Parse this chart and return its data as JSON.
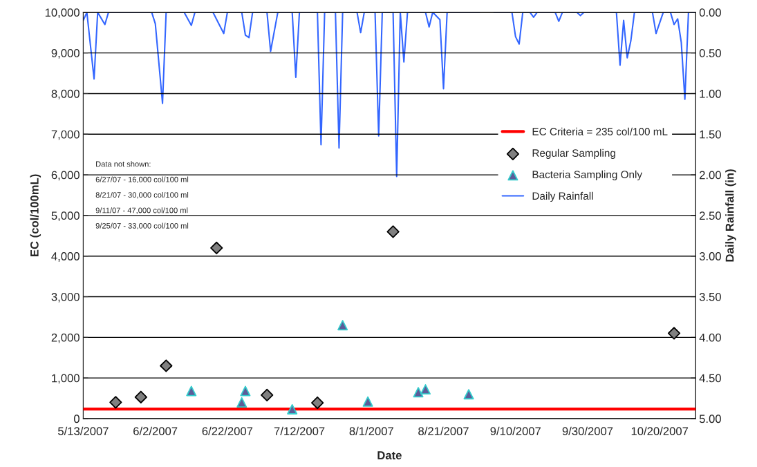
{
  "chart_data": {
    "type": "scatter",
    "xlabel": "Date",
    "ylabel": "EC (col/100mL)",
    "y2label": "Daily Rainfall (in)",
    "xlim": [
      "2007-05-13",
      "2007-10-30"
    ],
    "xticks": [
      {
        "value": "2007-05-13",
        "label": "5/13/2007"
      },
      {
        "value": "2007-06-02",
        "label": "6/2/2007"
      },
      {
        "value": "2007-06-22",
        "label": "6/22/2007"
      },
      {
        "value": "2007-07-12",
        "label": "7/12/2007"
      },
      {
        "value": "2007-08-01",
        "label": "8/1/2007"
      },
      {
        "value": "2007-08-21",
        "label": "8/21/2007"
      },
      {
        "value": "2007-09-10",
        "label": "9/10/2007"
      },
      {
        "value": "2007-09-30",
        "label": "9/30/2007"
      },
      {
        "value": "2007-10-20",
        "label": "10/20/2007"
      }
    ],
    "ylim": [
      0,
      10000
    ],
    "yticks": [
      0,
      {
        "value": 1000,
        "label": "1,000"
      },
      {
        "value": 2000,
        "label": "2,000"
      },
      {
        "value": 3000,
        "label": "3,000"
      },
      {
        "value": 4000,
        "label": "4,000"
      },
      {
        "value": 5000,
        "label": "5,000"
      },
      {
        "value": 6000,
        "label": "6,000"
      },
      {
        "value": 7000,
        "label": "7,000"
      },
      {
        "value": 8000,
        "label": "8,000"
      },
      {
        "value": 9000,
        "label": "9,000"
      },
      {
        "value": 10000,
        "label": "10,000"
      }
    ],
    "y2lim": [
      5.0,
      0.0
    ],
    "y2ticks": [
      {
        "value": 0,
        "label": "0.00"
      },
      {
        "value": 0.5,
        "label": "0.50"
      },
      {
        "value": 1,
        "label": "1.00"
      },
      {
        "value": 1.5,
        "label": "1.50"
      },
      {
        "value": 2,
        "label": "2.00"
      },
      {
        "value": 2.5,
        "label": "2.50"
      },
      {
        "value": 3,
        "label": "3.00"
      },
      {
        "value": 3.5,
        "label": "3.50"
      },
      {
        "value": 4,
        "label": "4.00"
      },
      {
        "value": 4.5,
        "label": "4.50"
      },
      {
        "value": 5,
        "label": "5.00"
      }
    ],
    "ref_lines": [
      {
        "axis": "y",
        "value": 235,
        "label": "EC Criteria = 235 col/100 mL",
        "color": "#ff0000",
        "line_style": "solid"
      }
    ],
    "series": [
      {
        "name": "Regular Sampling",
        "marker": "diamond",
        "color": "#808080",
        "x": [
          "2007-05-22",
          "2007-05-29",
          "2007-06-05",
          "2007-06-19",
          "2007-07-03",
          "2007-07-17",
          "2007-08-07",
          "2007-10-24"
        ],
        "values": [
          400,
          530,
          1300,
          4200,
          580,
          390,
          4600,
          2100
        ]
      },
      {
        "name": "Bacteria Sampling Only",
        "marker": "triangle",
        "color": "#5c5c99",
        "x": [
          "2007-06-12",
          "2007-06-26",
          "2007-06-27",
          "2007-07-10",
          "2007-07-24",
          "2007-07-31",
          "2007-08-14",
          "2007-08-16",
          "2007-08-28"
        ],
        "values": [
          680,
          400,
          680,
          230,
          2300,
          420,
          650,
          720,
          600
        ]
      },
      {
        "name": "Daily Rainfall",
        "type": "line",
        "axis": "y2",
        "marker": "none",
        "line_style": "solid",
        "color": "#3366ff",
        "x": [
          "2007-05-13",
          "2007-05-14",
          "2007-05-16",
          "2007-05-17",
          "2007-05-19",
          "2007-05-20",
          "2007-06-01",
          "2007-06-02",
          "2007-06-04",
          "2007-06-05",
          "2007-06-10",
          "2007-06-12",
          "2007-06-13",
          "2007-06-18",
          "2007-06-21",
          "2007-06-22",
          "2007-06-26",
          "2007-06-27",
          "2007-06-28",
          "2007-06-29",
          "2007-07-03",
          "2007-07-04",
          "2007-07-06",
          "2007-07-10",
          "2007-07-11",
          "2007-07-12",
          "2007-07-17",
          "2007-07-18",
          "2007-07-19",
          "2007-07-22",
          "2007-07-23",
          "2007-07-24",
          "2007-07-28",
          "2007-07-29",
          "2007-07-30",
          "2007-08-02",
          "2007-08-03",
          "2007-08-04",
          "2007-08-07",
          "2007-08-08",
          "2007-08-09",
          "2007-08-10",
          "2007-08-11",
          "2007-08-16",
          "2007-08-17",
          "2007-08-18",
          "2007-08-20",
          "2007-08-21",
          "2007-08-22",
          "2007-08-31",
          "2007-09-01",
          "2007-09-04",
          "2007-09-09",
          "2007-09-10",
          "2007-09-11",
          "2007-09-12",
          "2007-09-14",
          "2007-09-15",
          "2007-09-16",
          "2007-09-21",
          "2007-09-22",
          "2007-09-23",
          "2007-09-27",
          "2007-09-28",
          "2007-09-29",
          "2007-10-08",
          "2007-10-09",
          "2007-10-10",
          "2007-10-11",
          "2007-10-12",
          "2007-10-13",
          "2007-10-18",
          "2007-10-19",
          "2007-10-21",
          "2007-10-23",
          "2007-10-24",
          "2007-10-25",
          "2007-10-26",
          "2007-10-27",
          "2007-10-28",
          "2007-10-30"
        ],
        "values": [
          0.1,
          0,
          0.82,
          0,
          0.15,
          0,
          0,
          0.14,
          1.12,
          0,
          0,
          0.16,
          0,
          0,
          0.26,
          0,
          0,
          0.28,
          0.31,
          0,
          0,
          0.48,
          0,
          0,
          0.8,
          0,
          0,
          1.63,
          0,
          0,
          1.67,
          0,
          0,
          0.25,
          0,
          0,
          1.52,
          0,
          0,
          2.02,
          0,
          0.61,
          0,
          0,
          0.18,
          0,
          0.09,
          0.94,
          0,
          0,
          null,
          0,
          0,
          0.3,
          0.39,
          0,
          0,
          0.06,
          0,
          0,
          0.11,
          0,
          0,
          0.04,
          0,
          0,
          0.65,
          0.1,
          0.56,
          0.35,
          0,
          0,
          0.26,
          0,
          0,
          0.15,
          0.08,
          0.37,
          1.07,
          0,
          0
        ]
      }
    ],
    "annotations": [
      "Data not shown:",
      "6/27/07 - 16,000 col/100 ml",
      "8/21/07 - 30,000 col/100 ml",
      "9/11/07 - 47,000 col/100 ml",
      "9/25/07 - 33,000 col/100 ml"
    ],
    "grid": "y",
    "legend": "center right"
  }
}
